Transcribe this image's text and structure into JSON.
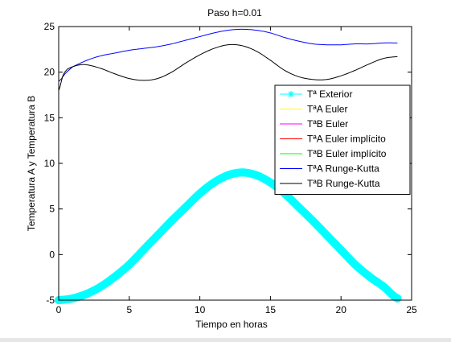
{
  "chart_data": {
    "type": "line",
    "title": "Paso h=0.01",
    "xlabel": "Tiempo en horas",
    "ylabel": "Temperatura A y Temperatura B",
    "xlim": [
      0,
      25
    ],
    "ylim": [
      -5,
      25
    ],
    "xticks": [
      0,
      5,
      10,
      15,
      20,
      25
    ],
    "yticks": [
      -5,
      0,
      5,
      10,
      15,
      20,
      25
    ],
    "grid": false,
    "legend_position": "right",
    "series": [
      {
        "name": "Tª Exterior",
        "color": "#00ffff",
        "marker": "asterisk",
        "x": [
          0,
          1,
          2,
          3,
          4,
          5,
          6,
          7,
          8,
          9,
          10,
          11,
          12,
          13,
          14,
          15,
          16,
          17,
          18,
          19,
          20,
          21,
          22,
          23,
          24
        ],
        "y": [
          -5.0,
          -4.8,
          -4.3,
          -3.5,
          -2.4,
          -1.1,
          0.5,
          2.1,
          3.7,
          5.2,
          6.7,
          7.9,
          8.7,
          9.0,
          8.7,
          7.9,
          6.7,
          5.2,
          3.7,
          2.1,
          0.5,
          -1.1,
          -2.4,
          -3.5,
          -4.8
        ]
      },
      {
        "name": "TªA Euler",
        "color": "#ffff00",
        "x": [],
        "y": []
      },
      {
        "name": "TªB Euler",
        "color": "#ff00ff",
        "x": [],
        "y": []
      },
      {
        "name": "TªA Euler implícito",
        "color": "#ff0000",
        "x": [],
        "y": []
      },
      {
        "name": "TªB Euler implícito",
        "color": "#00ff00",
        "x": [],
        "y": []
      },
      {
        "name": "TªA Runge-Kutta",
        "color": "#0000ff",
        "x": [
          0,
          0.5,
          1,
          2,
          3,
          4,
          5,
          6,
          7,
          8,
          9,
          10,
          11,
          12,
          13,
          14,
          15,
          16,
          17,
          18,
          19,
          20,
          21,
          22,
          23,
          24
        ],
        "y": [
          19.0,
          19.9,
          20.6,
          21.3,
          21.8,
          22.1,
          22.4,
          22.6,
          22.8,
          23.1,
          23.5,
          23.9,
          24.3,
          24.6,
          24.7,
          24.6,
          24.3,
          23.8,
          23.4,
          23.1,
          23.0,
          23.0,
          23.1,
          23.1,
          23.2,
          23.2
        ]
      },
      {
        "name": "TªB Runge-Kutta",
        "color": "#000000",
        "x": [
          0,
          0.3,
          0.6,
          1,
          1.5,
          2,
          3,
          4,
          5,
          6,
          7,
          8,
          9,
          10,
          11,
          12,
          13,
          14,
          15,
          16,
          17,
          18,
          19,
          20,
          21,
          22,
          23,
          24
        ],
        "y": [
          18.0,
          19.6,
          20.3,
          20.6,
          20.8,
          20.8,
          20.4,
          19.8,
          19.3,
          19.1,
          19.3,
          20.0,
          21.0,
          21.9,
          22.6,
          23.0,
          22.9,
          22.3,
          21.3,
          20.2,
          19.5,
          19.2,
          19.2,
          19.6,
          20.2,
          20.9,
          21.5,
          21.7
        ]
      }
    ]
  }
}
